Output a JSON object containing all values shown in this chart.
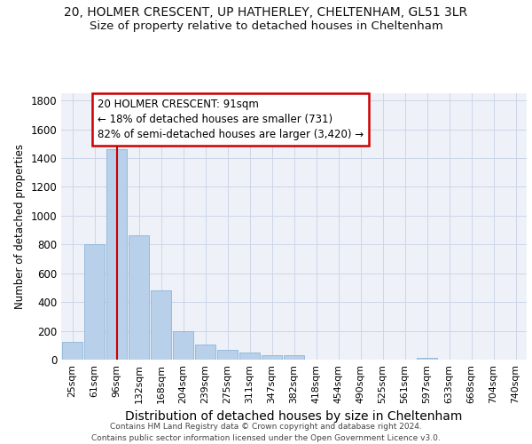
{
  "title_line1": "20, HOLMER CRESCENT, UP HATHERLEY, CHELTENHAM, GL51 3LR",
  "title_line2": "Size of property relative to detached houses in Cheltenham",
  "xlabel": "Distribution of detached houses by size in Cheltenham",
  "ylabel": "Number of detached properties",
  "footer_line1": "Contains HM Land Registry data © Crown copyright and database right 2024.",
  "footer_line2": "Contains public sector information licensed under the Open Government Licence v3.0.",
  "categories": [
    "25sqm",
    "61sqm",
    "96sqm",
    "132sqm",
    "168sqm",
    "204sqm",
    "239sqm",
    "275sqm",
    "311sqm",
    "347sqm",
    "382sqm",
    "418sqm",
    "454sqm",
    "490sqm",
    "525sqm",
    "561sqm",
    "597sqm",
    "633sqm",
    "668sqm",
    "704sqm",
    "740sqm"
  ],
  "values": [
    125,
    800,
    1460,
    865,
    480,
    200,
    105,
    65,
    47,
    33,
    28,
    0,
    0,
    0,
    0,
    0,
    10,
    0,
    0,
    0,
    0
  ],
  "bar_color": "#b8d0ea",
  "bar_edge_color": "#8cb4d8",
  "vline_x": 2,
  "vline_color": "#cc0000",
  "annotation_text": "20 HOLMER CRESCENT: 91sqm\n← 18% of detached houses are smaller (731)\n82% of semi-detached houses are larger (3,420) →",
  "annotation_box_color": "#cc0000",
  "annotation_text_color": "#000000",
  "ylim": [
    0,
    1850
  ],
  "yticks": [
    0,
    200,
    400,
    600,
    800,
    1000,
    1200,
    1400,
    1600,
    1800
  ],
  "grid_color": "#ccd6e8",
  "bg_color": "#eef2f8",
  "title_fontsize": 10,
  "subtitle_fontsize": 9.5,
  "annot_fontsize": 8.5,
  "xlabel_fontsize": 10,
  "ylabel_fontsize": 8.5,
  "footer_fontsize": 6.5
}
